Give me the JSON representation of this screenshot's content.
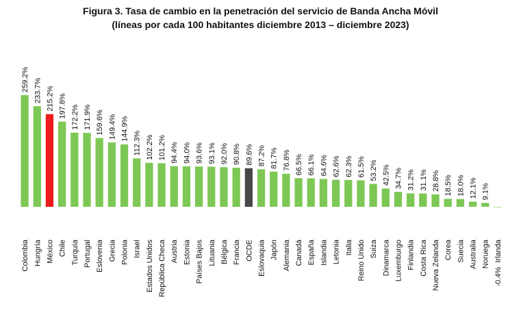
{
  "chart_data": {
    "type": "bar",
    "title": "Figura 3. Tasa de cambio en la penetración del servicio de Banda Ancha Móvil",
    "subtitle": "(líneas por cada 100 habitantes diciembre 2013 – diciembre 2023)",
    "xlabel": "",
    "ylabel": "",
    "ylim": [
      -5,
      265
    ],
    "grid": false,
    "legend": "none",
    "categories": [
      "Colombia",
      "Hungría",
      "México",
      "Chile",
      "Turquía",
      "Portugal",
      "Eslovenia",
      "Grecia",
      "Polonia",
      "Israel",
      "Estados Unidos",
      "República Checa",
      "Austria",
      "Estonia",
      "Países Bajos",
      "Lituania",
      "Bélgica",
      "Francia",
      "OCDE",
      "Eslovaquia",
      "Japón",
      "Alemania",
      "Canadá",
      "España",
      "Islandia",
      "Letonia",
      "Italia",
      "Reino Unido",
      "Suiza",
      "Dinamarca",
      "Luxemburgo",
      "Finlandia",
      "Costa Rica",
      "Nueva Zelanda",
      "Corea",
      "Suecia",
      "Australia",
      "Noruega",
      "Irlanda"
    ],
    "values": [
      259.2,
      233.7,
      215.2,
      197.8,
      172.2,
      171.9,
      159.6,
      149.4,
      144.9,
      112.3,
      102.2,
      101.2,
      94.4,
      94.0,
      93.6,
      93.1,
      92.0,
      90.8,
      89.6,
      87.2,
      81.7,
      76.8,
      66.5,
      66.1,
      64.6,
      62.6,
      62.3,
      61.5,
      53.2,
      42.5,
      34.7,
      31.2,
      31.1,
      28.8,
      18.5,
      18.0,
      12.1,
      9.1,
      -0.4
    ],
    "value_labels": [
      "259.2%",
      "233.7%",
      "215.2%",
      "197.8%",
      "172.2%",
      "171.9%",
      "159.6%",
      "149.4%",
      "144.9%",
      "112.3%",
      "102.2%",
      "101.2%",
      "94.4%",
      "94.0%",
      "93.6%",
      "93.1%",
      "92.0%",
      "90.8%",
      "89.6%",
      "87.2%",
      "81.7%",
      "76.8%",
      "66.5%",
      "66.1%",
      "64.6%",
      "62.6%",
      "62.3%",
      "61.5%",
      "53.2%",
      "42.5%",
      "34.7%",
      "31.2%",
      "31.1%",
      "28.8%",
      "18.5%",
      "18.0%",
      "12.1%",
      "9.1%",
      "-0.4%"
    ],
    "colors": {
      "default": "#7dc855",
      "México": "#ee1c1c",
      "OCDE": "#474747"
    }
  }
}
